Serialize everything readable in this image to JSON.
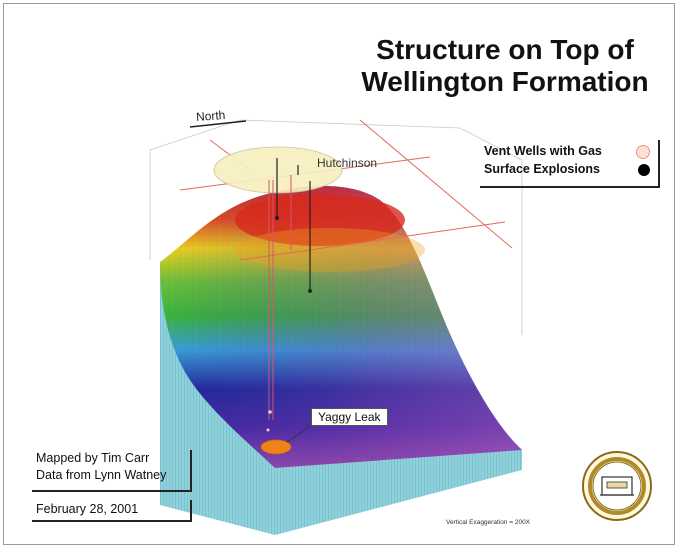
{
  "title": {
    "line1": "Structure on Top of",
    "line2": "Wellington Formation"
  },
  "legend": {
    "items": [
      {
        "label": "Vent Wells with Gas",
        "symbol": "dotted-circle-icon",
        "color": "#e6452a"
      },
      {
        "label": "Surface Explosions",
        "symbol": "filled-circle-icon",
        "color": "#000000"
      }
    ]
  },
  "labels": {
    "north": "North",
    "town": "Hutchinson",
    "leak": "Yaggy Leak"
  },
  "credits": {
    "mapped_by": "Mapped by Tim Carr",
    "data_from": "Data from Lynn Watney",
    "date": "February 28, 2001"
  },
  "vertical_exaggeration": "Vertical Exaggeration = 200X",
  "seal": {
    "name": "kansas-geological-survey-seal-icon"
  },
  "colors": {
    "high": "#d8281c",
    "mid_high": "#f0d21c",
    "mid": "#3cb43c",
    "mid_low": "#3aa0d8",
    "low": "#232a9c",
    "lowest": "#9a4cb0",
    "block_side": "#8fd2dc",
    "grid_line": "#e8675a"
  }
}
